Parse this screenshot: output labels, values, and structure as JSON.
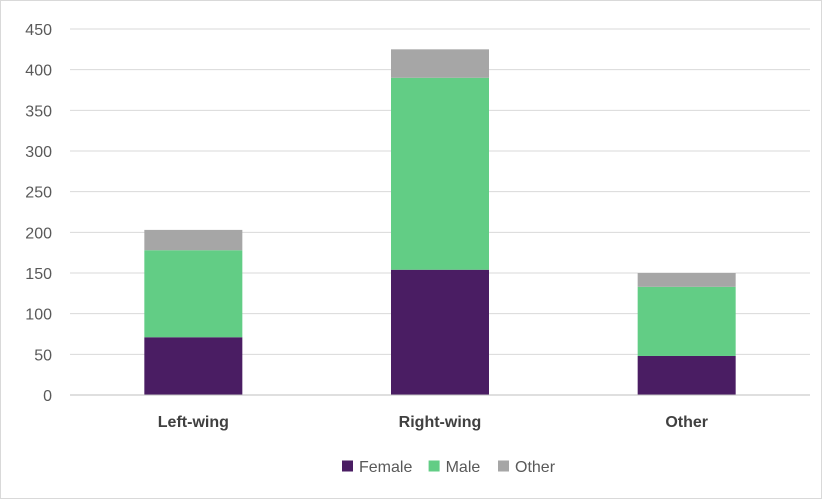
{
  "chart_data": {
    "type": "bar",
    "stacked": true,
    "title": "",
    "xlabel": "",
    "ylabel": "",
    "categories": [
      "Left-wing",
      "Right-wing",
      "Other"
    ],
    "series": [
      {
        "name": "Female",
        "values": [
          71,
          154,
          48
        ],
        "color": "#4a1d63"
      },
      {
        "name": "Male",
        "values": [
          107,
          236,
          85
        ],
        "color": "#62cd85"
      },
      {
        "name": "Other",
        "values": [
          25,
          35,
          17
        ],
        "color": "#a6a6a6"
      }
    ],
    "ylim": [
      0,
      450
    ],
    "yticks": [
      0,
      50,
      100,
      150,
      200,
      250,
      300,
      350,
      400,
      450
    ],
    "grid": true,
    "legend_position": "bottom"
  }
}
